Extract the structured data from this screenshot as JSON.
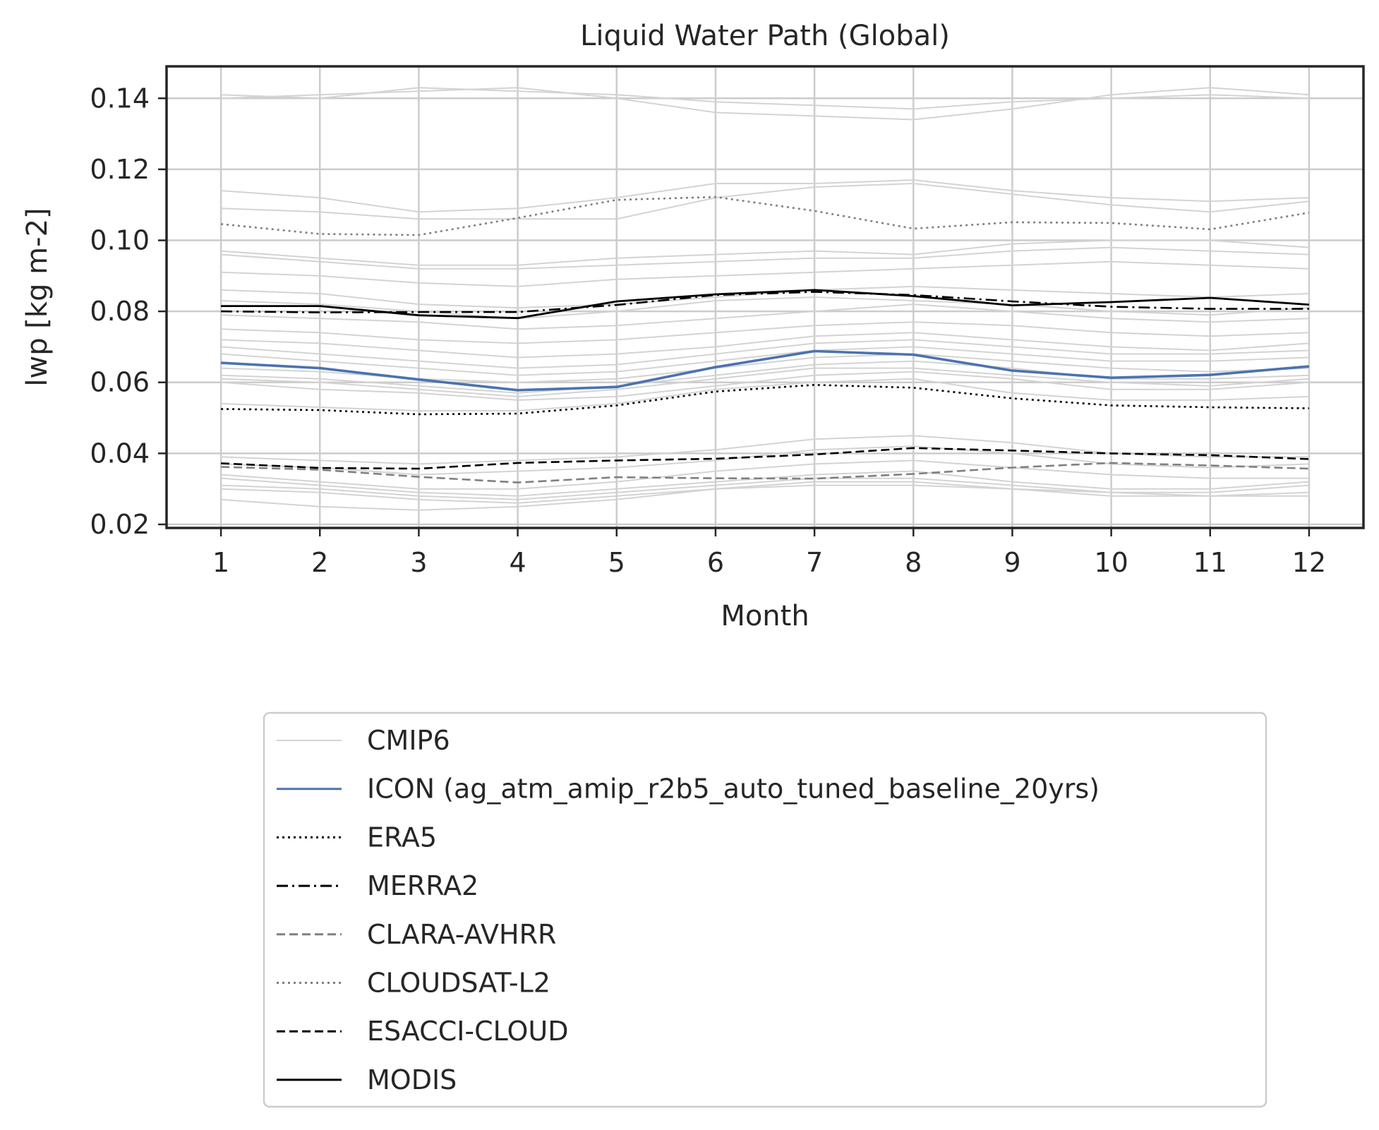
{
  "chart_data": {
    "type": "line",
    "title": "Liquid Water Path (Global)",
    "xlabel": "Month",
    "ylabel": "lwp [kg m-2]",
    "xlim": [
      0.45,
      12.55
    ],
    "ylim": [
      0.019,
      0.149
    ],
    "x_ticks": [
      "1",
      "2",
      "3",
      "4",
      "5",
      "6",
      "7",
      "8",
      "9",
      "10",
      "11",
      "12"
    ],
    "y_ticks": [
      "0.02",
      "0.04",
      "0.06",
      "0.08",
      "0.10",
      "0.12",
      "0.14"
    ],
    "x": [
      1,
      2,
      3,
      4,
      5,
      6,
      7,
      8,
      9,
      10,
      11,
      12
    ],
    "grid": true,
    "legend_position": "below",
    "colors": {
      "cmip6": "#d3d3d3",
      "icon": "#4c72b0",
      "black": "#000000",
      "gray": "#808080",
      "grid": "#cccccc",
      "axis": "#262626"
    },
    "cmip6_members": [
      [
        0.141,
        0.14,
        0.143,
        0.142,
        0.141,
        0.139,
        0.138,
        0.137,
        0.139,
        0.14,
        0.141,
        0.14
      ],
      [
        0.14,
        0.141,
        0.142,
        0.143,
        0.14,
        0.136,
        0.135,
        0.134,
        0.137,
        0.141,
        0.143,
        0.141
      ],
      [
        0.114,
        0.112,
        0.108,
        0.109,
        0.112,
        0.116,
        0.116,
        0.117,
        0.114,
        0.112,
        0.111,
        0.112
      ],
      [
        0.109,
        0.108,
        0.106,
        0.106,
        0.106,
        0.112,
        0.115,
        0.116,
        0.113,
        0.11,
        0.108,
        0.111
      ],
      [
        0.097,
        0.095,
        0.093,
        0.093,
        0.095,
        0.096,
        0.097,
        0.096,
        0.099,
        0.1,
        0.1,
        0.098
      ],
      [
        0.096,
        0.094,
        0.092,
        0.092,
        0.093,
        0.094,
        0.095,
        0.095,
        0.097,
        0.098,
        0.097,
        0.096
      ],
      [
        0.091,
        0.09,
        0.088,
        0.087,
        0.089,
        0.09,
        0.091,
        0.092,
        0.093,
        0.094,
        0.093,
        0.092
      ],
      [
        0.086,
        0.085,
        0.082,
        0.081,
        0.082,
        0.084,
        0.086,
        0.087,
        0.086,
        0.085,
        0.084,
        0.085
      ],
      [
        0.083,
        0.082,
        0.08,
        0.078,
        0.08,
        0.083,
        0.084,
        0.083,
        0.082,
        0.08,
        0.079,
        0.081
      ],
      [
        0.079,
        0.078,
        0.077,
        0.075,
        0.076,
        0.078,
        0.08,
        0.082,
        0.08,
        0.078,
        0.077,
        0.078
      ],
      [
        0.075,
        0.074,
        0.072,
        0.071,
        0.072,
        0.074,
        0.076,
        0.077,
        0.076,
        0.074,
        0.073,
        0.074
      ],
      [
        0.072,
        0.071,
        0.069,
        0.067,
        0.068,
        0.07,
        0.073,
        0.074,
        0.072,
        0.07,
        0.069,
        0.071
      ],
      [
        0.07,
        0.068,
        0.066,
        0.064,
        0.065,
        0.068,
        0.071,
        0.072,
        0.07,
        0.068,
        0.068,
        0.069
      ],
      [
        0.068,
        0.066,
        0.064,
        0.062,
        0.063,
        0.066,
        0.069,
        0.07,
        0.068,
        0.066,
        0.066,
        0.067
      ],
      [
        0.064,
        0.063,
        0.061,
        0.06,
        0.061,
        0.064,
        0.067,
        0.068,
        0.066,
        0.064,
        0.063,
        0.064
      ],
      [
        0.062,
        0.061,
        0.059,
        0.057,
        0.059,
        0.062,
        0.065,
        0.066,
        0.064,
        0.061,
        0.061,
        0.062
      ],
      [
        0.061,
        0.06,
        0.058,
        0.056,
        0.058,
        0.061,
        0.064,
        0.064,
        0.062,
        0.06,
        0.059,
        0.061
      ],
      [
        0.06,
        0.058,
        0.057,
        0.055,
        0.056,
        0.059,
        0.062,
        0.063,
        0.061,
        0.058,
        0.058,
        0.06
      ],
      [
        0.054,
        0.053,
        0.052,
        0.052,
        0.054,
        0.058,
        0.06,
        0.061,
        0.057,
        0.055,
        0.055,
        0.056
      ],
      [
        0.039,
        0.038,
        0.037,
        0.038,
        0.039,
        0.041,
        0.044,
        0.045,
        0.043,
        0.04,
        0.039,
        0.039
      ],
      [
        0.037,
        0.036,
        0.034,
        0.035,
        0.036,
        0.038,
        0.041,
        0.042,
        0.04,
        0.037,
        0.036,
        0.037
      ],
      [
        0.034,
        0.032,
        0.03,
        0.03,
        0.032,
        0.035,
        0.037,
        0.038,
        0.036,
        0.034,
        0.033,
        0.033
      ],
      [
        0.033,
        0.031,
        0.029,
        0.028,
        0.03,
        0.032,
        0.034,
        0.035,
        0.032,
        0.03,
        0.03,
        0.032
      ],
      [
        0.031,
        0.03,
        0.028,
        0.027,
        0.029,
        0.031,
        0.033,
        0.033,
        0.031,
        0.029,
        0.029,
        0.031
      ],
      [
        0.03,
        0.029,
        0.027,
        0.026,
        0.028,
        0.03,
        0.032,
        0.032,
        0.03,
        0.028,
        0.028,
        0.029
      ],
      [
        0.027,
        0.025,
        0.024,
        0.025,
        0.027,
        0.03,
        0.031,
        0.031,
        0.03,
        0.029,
        0.028,
        0.028
      ]
    ],
    "series": [
      {
        "name": "ICON (ag_atm_amip_r2b5_auto_tuned_baseline_20yrs)",
        "style": "solid",
        "color": "#4c72b0",
        "width": 3.6,
        "values": [
          0.0655,
          0.064,
          0.0608,
          0.0578,
          0.0587,
          0.0643,
          0.0688,
          0.0678,
          0.0633,
          0.0613,
          0.0621,
          0.0645
        ]
      },
      {
        "name": "ERA5",
        "style": "dotted",
        "color": "#000000",
        "width": 2.6,
        "values": [
          0.0525,
          0.0522,
          0.051,
          0.0512,
          0.0535,
          0.0574,
          0.0593,
          0.0585,
          0.0555,
          0.0535,
          0.053,
          0.0527
        ]
      },
      {
        "name": "MERRA2",
        "style": "dashdot",
        "color": "#000000",
        "width": 2.6,
        "values": [
          0.08,
          0.0797,
          0.0798,
          0.0798,
          0.0818,
          0.0846,
          0.0855,
          0.0846,
          0.0828,
          0.0813,
          0.0807,
          0.0807
        ]
      },
      {
        "name": "CLARA-AVHRR",
        "style": "dashed",
        "color": "#808080",
        "width": 2.6,
        "values": [
          0.0362,
          0.0354,
          0.0334,
          0.0318,
          0.0333,
          0.033,
          0.0329,
          0.0342,
          0.036,
          0.0373,
          0.0366,
          0.0357
        ]
      },
      {
        "name": "CLOUDSAT-L2",
        "style": "dotted",
        "color": "#808080",
        "width": 2.6,
        "values": [
          0.1046,
          0.1018,
          0.1015,
          0.1063,
          0.1114,
          0.1122,
          0.1083,
          0.1033,
          0.1051,
          0.1049,
          0.1031,
          0.1078
        ]
      },
      {
        "name": "ESACCI-CLOUD",
        "style": "dashed",
        "color": "#000000",
        "width": 2.6,
        "values": [
          0.0372,
          0.0359,
          0.0357,
          0.0373,
          0.038,
          0.0385,
          0.0397,
          0.0415,
          0.0408,
          0.04,
          0.0395,
          0.0384
        ]
      },
      {
        "name": "MODIS",
        "style": "solid",
        "color": "#000000",
        "width": 2.8,
        "values": [
          0.0815,
          0.0815,
          0.0789,
          0.0781,
          0.0828,
          0.0848,
          0.086,
          0.0843,
          0.0817,
          0.0826,
          0.0838,
          0.0819
        ]
      }
    ],
    "legend": [
      {
        "label": "CMIP6",
        "style": "solid",
        "color": "#d3d3d3"
      },
      {
        "label": "ICON (ag_atm_amip_r2b5_auto_tuned_baseline_20yrs)",
        "style": "solid",
        "color": "#4c72b0"
      },
      {
        "label": "ERA5",
        "style": "dotted",
        "color": "#000000"
      },
      {
        "label": "MERRA2",
        "style": "dashdot",
        "color": "#000000"
      },
      {
        "label": "CLARA-AVHRR",
        "style": "dashed",
        "color": "#808080"
      },
      {
        "label": "CLOUDSAT-L2",
        "style": "dotted",
        "color": "#808080"
      },
      {
        "label": "ESACCI-CLOUD",
        "style": "dashed",
        "color": "#000000"
      },
      {
        "label": "MODIS",
        "style": "solid",
        "color": "#000000"
      }
    ]
  }
}
